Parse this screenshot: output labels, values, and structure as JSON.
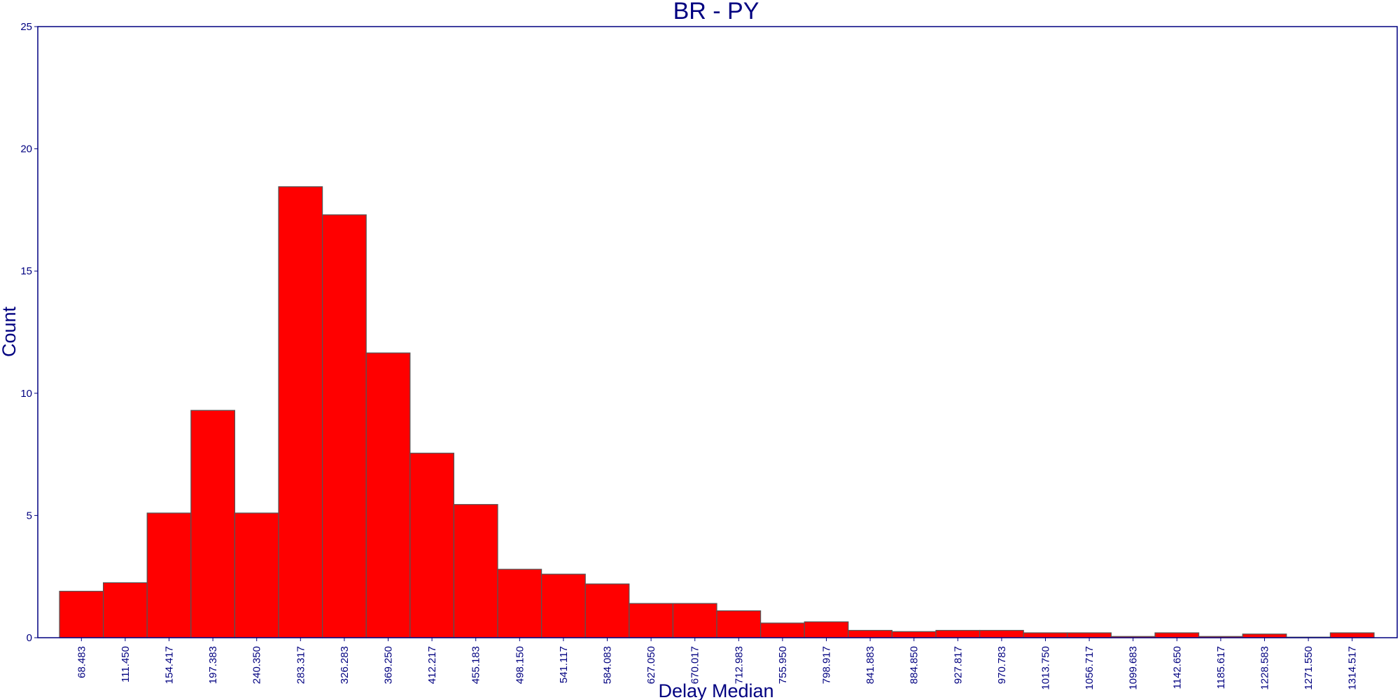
{
  "chart_data": {
    "type": "bar",
    "title": "BR - PY",
    "xlabel": "Delay Median",
    "ylabel": "Count",
    "ylim": [
      0,
      25
    ],
    "yticks": [
      "0",
      "5",
      "10",
      "15",
      "20",
      "25"
    ],
    "grid": false,
    "legend": "none",
    "categories": [
      "68.483",
      "111.450",
      "154.417",
      "197.383",
      "240.350",
      "283.317",
      "326.283",
      "369.250",
      "412.217",
      "455.183",
      "498.150",
      "541.117",
      "584.083",
      "627.050",
      "670.017",
      "712.983",
      "755.950",
      "798.917",
      "841.883",
      "884.850",
      "927.817",
      "970.783",
      "1013.750",
      "1056.717",
      "1099.683",
      "1142.650",
      "1185.617",
      "1228.583",
      "1271.550",
      "1314.517"
    ],
    "values": [
      1.9,
      2.25,
      5.1,
      9.3,
      5.1,
      18.45,
      17.3,
      11.65,
      7.55,
      5.45,
      2.8,
      2.6,
      2.2,
      1.4,
      1.4,
      1.1,
      0.6,
      0.65,
      0.3,
      0.25,
      0.3,
      0.3,
      0.2,
      0.2,
      0.05,
      0.2,
      0.05,
      0.15,
      0.0,
      0.2
    ]
  },
  "colors": {
    "bar_fill": "#ff0000",
    "bar_stroke": "#555555",
    "axis": "#000080",
    "text": "#000080",
    "background": "#ffffff"
  }
}
